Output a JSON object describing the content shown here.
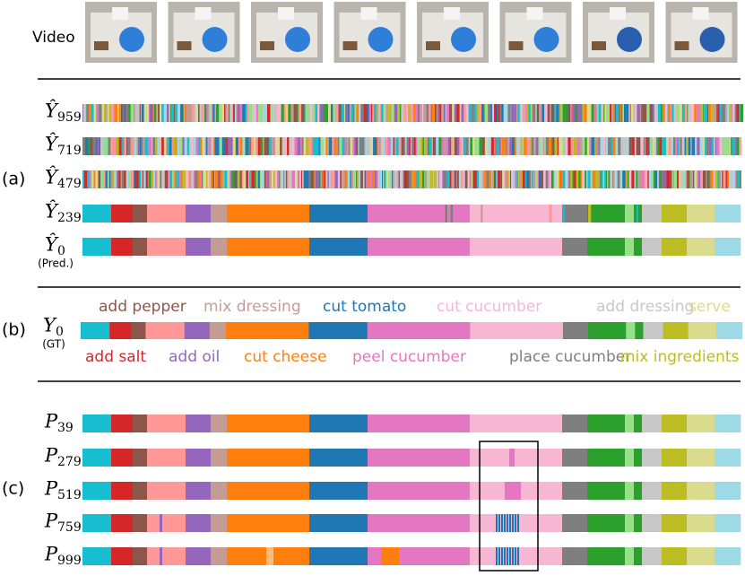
{
  "video_label": "Video",
  "panels": [
    {
      "label": "(a)",
      "rows": [
        {
          "symbol": "Ŷ",
          "subscript": "959"
        },
        {
          "symbol": "Ŷ",
          "subscript": "719"
        },
        {
          "symbol": "Ŷ",
          "subscript": "479"
        },
        {
          "symbol": "Ŷ",
          "subscript": "239"
        },
        {
          "symbol": "Ŷ",
          "subscript": "0",
          "note": "(Pred.)"
        }
      ]
    },
    {
      "label": "(b)",
      "rows": [
        {
          "symbol": "Y",
          "subscript": "0",
          "note": "(GT)"
        }
      ]
    },
    {
      "label": "(c)",
      "rows": [
        {
          "symbol": "P",
          "subscript": "39"
        },
        {
          "symbol": "P",
          "subscript": "279"
        },
        {
          "symbol": "P",
          "subscript": "519"
        },
        {
          "symbol": "P",
          "subscript": "759"
        },
        {
          "symbol": "P",
          "subscript": "999"
        }
      ]
    }
  ],
  "legend_top": [
    {
      "label": "add pepper",
      "color": "#8c564b"
    },
    {
      "label": "mix dressing",
      "color": "#c49c94"
    },
    {
      "label": "cut tomato",
      "color": "#1f77b4"
    },
    {
      "label": "cut cucumber",
      "color": "#f7b6d2"
    },
    {
      "label": "add dressing",
      "color": "#c7c7c7"
    },
    {
      "label": "serve",
      "color": "#dbdb8d"
    }
  ],
  "legend_bottom": [
    {
      "label": "add salt",
      "color": "#d62728"
    },
    {
      "label": "add oil",
      "color": "#9467bd"
    },
    {
      "label": "cut cheese",
      "color": "#ff7f0e"
    },
    {
      "label": "peel cucumber",
      "color": "#e377c2"
    },
    {
      "label": "place cucumber",
      "color": "#7f7f7f"
    },
    {
      "label": "mix ingredients",
      "color": "#bcbd22"
    }
  ]
}
